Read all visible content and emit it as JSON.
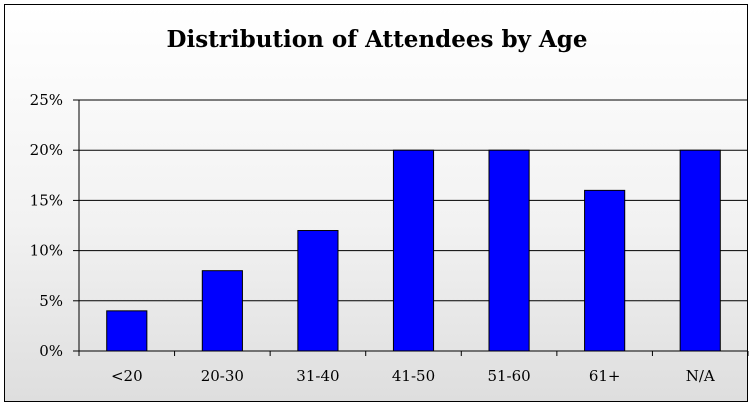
{
  "chart_data": {
    "type": "bar",
    "title": "Distribution of Attendees by Age",
    "xlabel": "",
    "ylabel": "",
    "categories": [
      "<20",
      "20-30",
      "31-40",
      "41-50",
      "51-60",
      "61+",
      "N/A"
    ],
    "values": [
      4,
      8,
      12,
      20,
      20,
      16,
      20
    ],
    "unit": "%",
    "ylim": [
      0,
      25
    ],
    "yticks": [
      "0%",
      "5%",
      "10%",
      "15%",
      "20%",
      "25%"
    ],
    "grid": true,
    "legend": "none",
    "bar_color": "#0000ff"
  }
}
